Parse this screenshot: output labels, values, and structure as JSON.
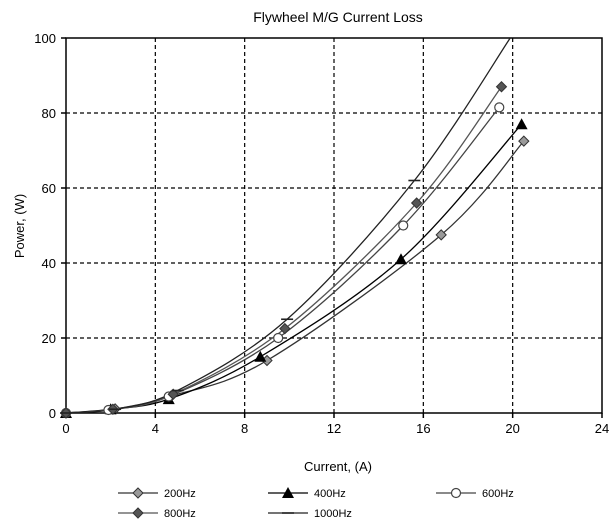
{
  "chart_data": {
    "type": "line",
    "title": "Flywheel M/G Current Loss",
    "xlabel": "Current, (A)",
    "ylabel": "Power, (W)",
    "xlim": [
      0,
      24
    ],
    "ylim": [
      0,
      100
    ],
    "x_ticks": [
      0,
      4,
      8,
      12,
      16,
      20,
      24
    ],
    "y_ticks": [
      0,
      20,
      40,
      60,
      80,
      100
    ],
    "grid": true,
    "legend_position": "bottom",
    "series": [
      {
        "name": "200Hz",
        "marker": "diamond-gray",
        "color": "#333333",
        "points": [
          [
            0,
            0
          ],
          [
            2.2,
            1.1
          ],
          [
            4.7,
            4.5
          ],
          [
            9.0,
            14
          ],
          [
            16.8,
            47.5
          ],
          [
            20.5,
            72.5
          ]
        ]
      },
      {
        "name": "400Hz",
        "marker": "triangle",
        "color": "#000000",
        "points": [
          [
            0,
            0
          ],
          [
            2.0,
            1.0
          ],
          [
            4.6,
            3.7
          ],
          [
            8.7,
            15
          ],
          [
            15.0,
            41
          ],
          [
            20.4,
            77
          ]
        ]
      },
      {
        "name": "600Hz",
        "marker": "circle-open",
        "color": "#444444",
        "points": [
          [
            0,
            0
          ],
          [
            1.9,
            0.8
          ],
          [
            4.6,
            4.4
          ],
          [
            9.5,
            20
          ],
          [
            15.1,
            50
          ],
          [
            19.4,
            81.5
          ]
        ]
      },
      {
        "name": "800Hz",
        "marker": "diamond",
        "color": "#555555",
        "points": [
          [
            0,
            0
          ],
          [
            2.1,
            1.0
          ],
          [
            4.8,
            5.0
          ],
          [
            9.8,
            22.5
          ],
          [
            15.7,
            56
          ],
          [
            19.5,
            87
          ]
        ]
      },
      {
        "name": "1000Hz",
        "marker": "dash",
        "color": "#222222",
        "points": [
          [
            0,
            0
          ],
          [
            2.2,
            1.0
          ],
          [
            5.0,
            6.0
          ],
          [
            9.9,
            25
          ],
          [
            15.6,
            62
          ],
          [
            20.0,
            101
          ]
        ]
      }
    ]
  }
}
